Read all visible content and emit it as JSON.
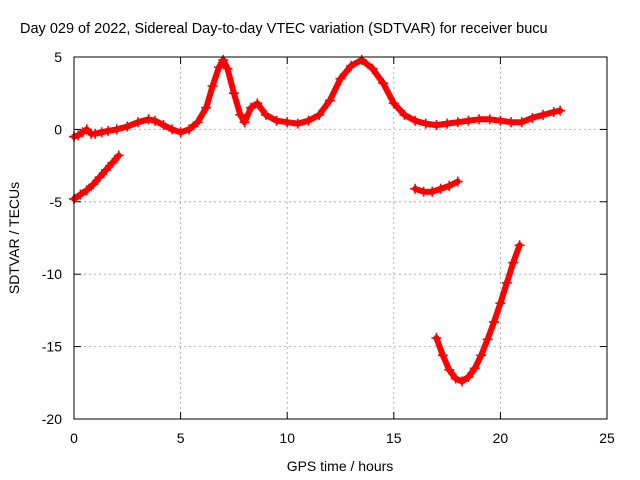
{
  "chart_data": {
    "type": "scatter",
    "title": "Day 029 of 2022, Sidereal Day-to-day VTEC variation (SDTVAR) for receiver bucu",
    "xlabel": "GPS time / hours",
    "ylabel": "SDTVAR / TECUs",
    "xlim": [
      0,
      25
    ],
    "ylim": [
      -20,
      5
    ],
    "xticks": [
      0,
      5,
      10,
      15,
      20,
      25
    ],
    "xtick_labels": [
      "0",
      "5",
      "10",
      "15",
      "20",
      "25"
    ],
    "yticks": [
      5,
      0,
      -5,
      -10,
      -15,
      -20
    ],
    "ytick_labels": [
      "5",
      "0",
      "-5",
      "-10",
      "-15",
      "-20"
    ],
    "grid": true,
    "marker": "plus",
    "color": "#ff0000",
    "series": [
      {
        "name": "main-arc",
        "x": [
          0.0,
          0.2,
          0.4,
          0.6,
          0.8,
          1.0,
          1.3,
          1.6,
          2.0,
          2.5,
          3.0,
          3.5,
          3.8,
          4.2,
          4.6,
          5.0,
          5.4,
          5.8,
          6.2,
          6.5,
          6.8,
          7.0,
          7.2,
          7.5,
          7.8,
          8.0,
          8.3,
          8.6,
          9.0,
          9.5,
          10.0,
          10.5,
          11.0,
          11.5,
          12.0,
          12.5,
          13.0,
          13.5,
          14.0,
          14.5,
          15.0,
          15.5,
          16.0,
          16.5,
          17.0,
          17.5,
          18.0,
          18.5,
          19.0,
          19.5,
          20.0,
          20.5,
          21.0,
          21.5,
          22.0,
          22.5,
          22.8
        ],
        "y": [
          -0.5,
          -0.4,
          -0.2,
          0.0,
          -0.3,
          -0.3,
          -0.2,
          -0.1,
          0.0,
          0.2,
          0.5,
          0.7,
          0.6,
          0.3,
          0.0,
          -0.2,
          0.0,
          0.5,
          1.5,
          3.0,
          4.3,
          4.8,
          4.2,
          2.5,
          1.0,
          0.5,
          1.5,
          1.8,
          1.0,
          0.6,
          0.5,
          0.4,
          0.6,
          1.0,
          2.0,
          3.5,
          4.4,
          4.8,
          4.2,
          3.2,
          1.8,
          1.0,
          0.6,
          0.4,
          0.3,
          0.4,
          0.5,
          0.6,
          0.7,
          0.7,
          0.6,
          0.5,
          0.5,
          0.8,
          1.0,
          1.2,
          1.3
        ]
      },
      {
        "name": "arc-2",
        "x": [
          0.0,
          0.3,
          0.6,
          0.9,
          1.2,
          1.5,
          1.8,
          2.1
        ],
        "y": [
          -4.8,
          -4.5,
          -4.2,
          -3.8,
          -3.3,
          -2.8,
          -2.3,
          -1.8
        ]
      },
      {
        "name": "arc-3",
        "x": [
          16.0,
          16.4,
          16.8,
          17.2,
          17.6,
          18.0
        ],
        "y": [
          -4.1,
          -4.3,
          -4.3,
          -4.1,
          -3.9,
          -3.6
        ]
      },
      {
        "name": "arc-4",
        "x": [
          17.0,
          17.3,
          17.6,
          17.9,
          18.2,
          18.5,
          18.8,
          19.1,
          19.4,
          19.7,
          20.0,
          20.3,
          20.6,
          20.9
        ],
        "y": [
          -14.4,
          -15.6,
          -16.6,
          -17.2,
          -17.4,
          -17.1,
          -16.5,
          -15.6,
          -14.5,
          -13.3,
          -12.0,
          -10.6,
          -9.2,
          -8.0
        ]
      }
    ]
  }
}
